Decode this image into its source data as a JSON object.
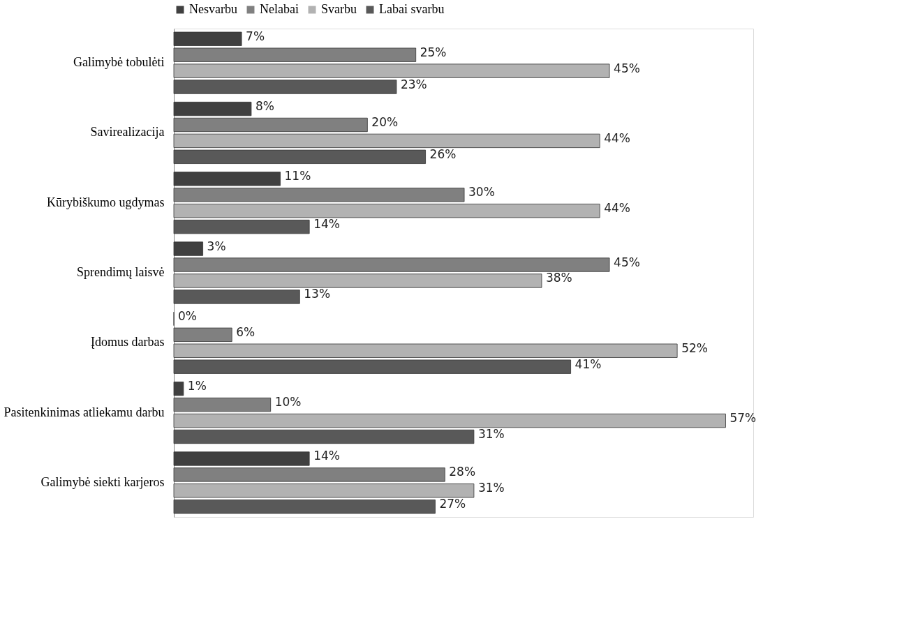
{
  "chart_data": {
    "type": "bar",
    "orientation": "horizontal",
    "legend": "top",
    "grid": false,
    "categories": [
      "Galimybė tobulėti",
      "Savirealizacija",
      "Kūrybiškumo ugdymas",
      "Sprendimų laisvė",
      "Įdomus darbas",
      "Pasitenkinimas atliekamu darbu",
      "Galimybė siekti karjeros"
    ],
    "series": [
      {
        "name": "Nesvarbu",
        "color": "#404040",
        "values": [
          7,
          8,
          11,
          3,
          0,
          1,
          14
        ],
        "value_labels": [
          "7%",
          "8%",
          "11%",
          "3%",
          "0%",
          "1%",
          "14%"
        ]
      },
      {
        "name": "Nelabai",
        "color": "#808080",
        "values": [
          25,
          20,
          30,
          45,
          6,
          10,
          28
        ],
        "value_labels": [
          "25%",
          "20%",
          "30%",
          "45%",
          "6%",
          "10%",
          "28%"
        ]
      },
      {
        "name": "Svarbu",
        "color": "#b2b2b2",
        "values": [
          45,
          44,
          44,
          38,
          52,
          57,
          31
        ],
        "value_labels": [
          "45%",
          "44%",
          "44%",
          "38%",
          "52%",
          "57%",
          "31%"
        ]
      },
      {
        "name": "Labai svarbu",
        "color": "#595959",
        "values": [
          23,
          26,
          14,
          13,
          41,
          31,
          27
        ],
        "value_labels": [
          "23%",
          "26%",
          "14%",
          "13%",
          "41%",
          "31%",
          "27%"
        ]
      }
    ]
  }
}
